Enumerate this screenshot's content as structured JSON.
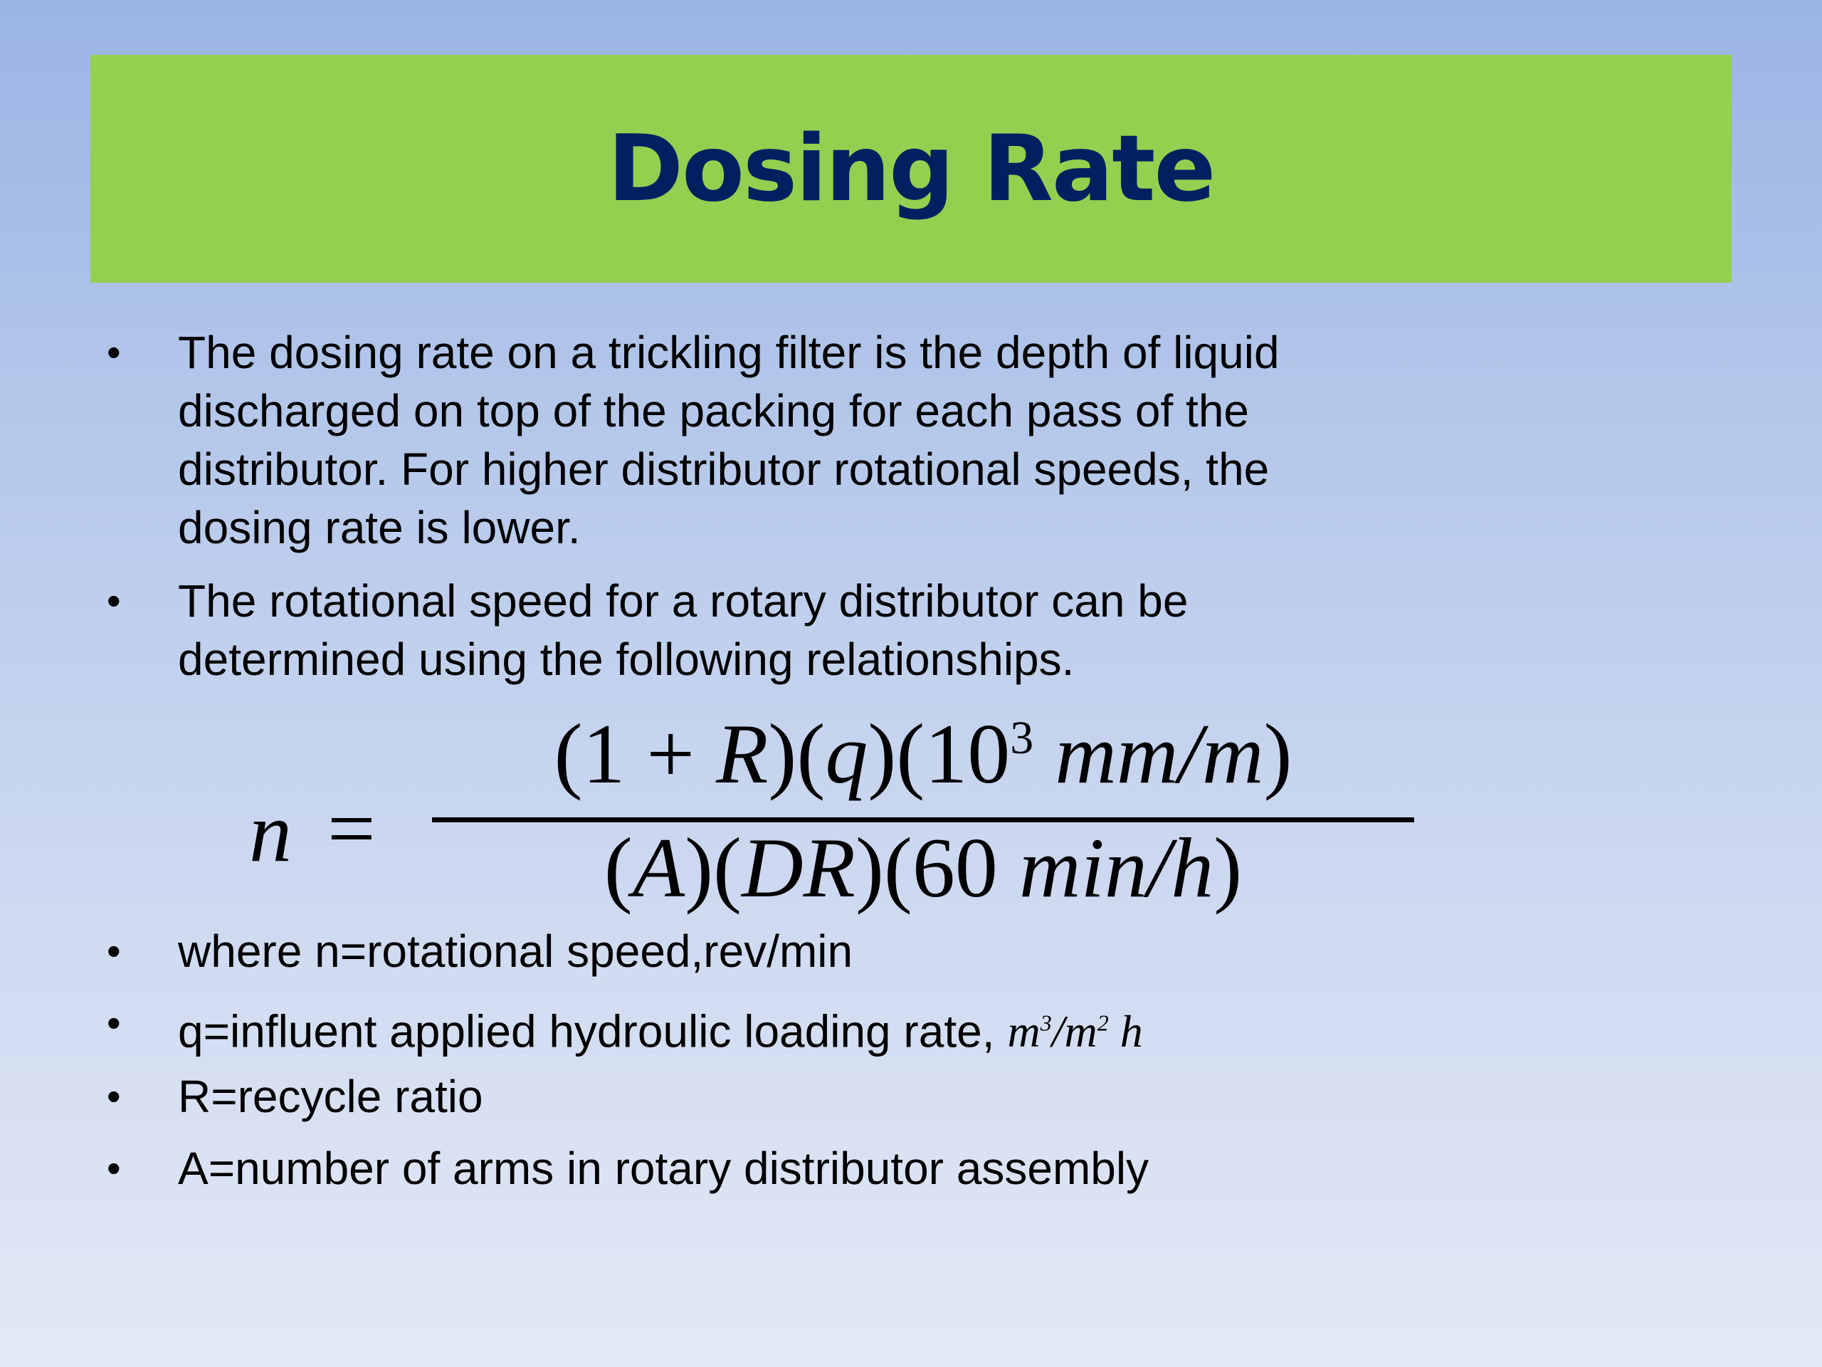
{
  "slide": {
    "title": "Dosing Rate",
    "colors": {
      "title_bar": "#92d050",
      "title_text": "#002060",
      "background_top": "#9ab4e4",
      "background_bottom": "#e3e9f5"
    },
    "bullets": [
      {
        "lines": [
          "The dosing rate on a trickling filter is the depth of liquid",
          "discharged on top  of the packing for each pass of the",
          "distributor. For higher distributor rotational speeds, the",
          "dosing rate  is lower."
        ]
      },
      {
        "lines": [
          "The rotational speed for a rotary distributor can be",
          "determined using the following relationships."
        ]
      },
      {
        "lines": [
          "where  n=rotational speed,rev/min"
        ]
      },
      {
        "lines": [
          "q=influent  applied hydroulic loading rate,"
        ],
        "unit": {
          "base1": "m",
          "exp1": "3",
          "sep": "/",
          "base2": "m",
          "exp2": "2",
          "tail": "h"
        }
      },
      {
        "lines": [
          "R=recycle ratio"
        ]
      },
      {
        "lines": [
          "A=number of arms in rotary distributor assembly"
        ]
      }
    ],
    "bullet_glyph": "•",
    "formula": {
      "lhs": "n",
      "eq": "=",
      "numerator": {
        "a": "(1 + ",
        "b": "R",
        "c": ")(",
        "d": "q",
        "e": ")(10",
        "exp": "3",
        "f": " mm/m",
        "g": ")"
      },
      "denominator": {
        "a": "(",
        "b": "A",
        "c": ")(",
        "d": "DR",
        "e": ")(60 ",
        "f": "min/h",
        "g": ")"
      }
    }
  }
}
